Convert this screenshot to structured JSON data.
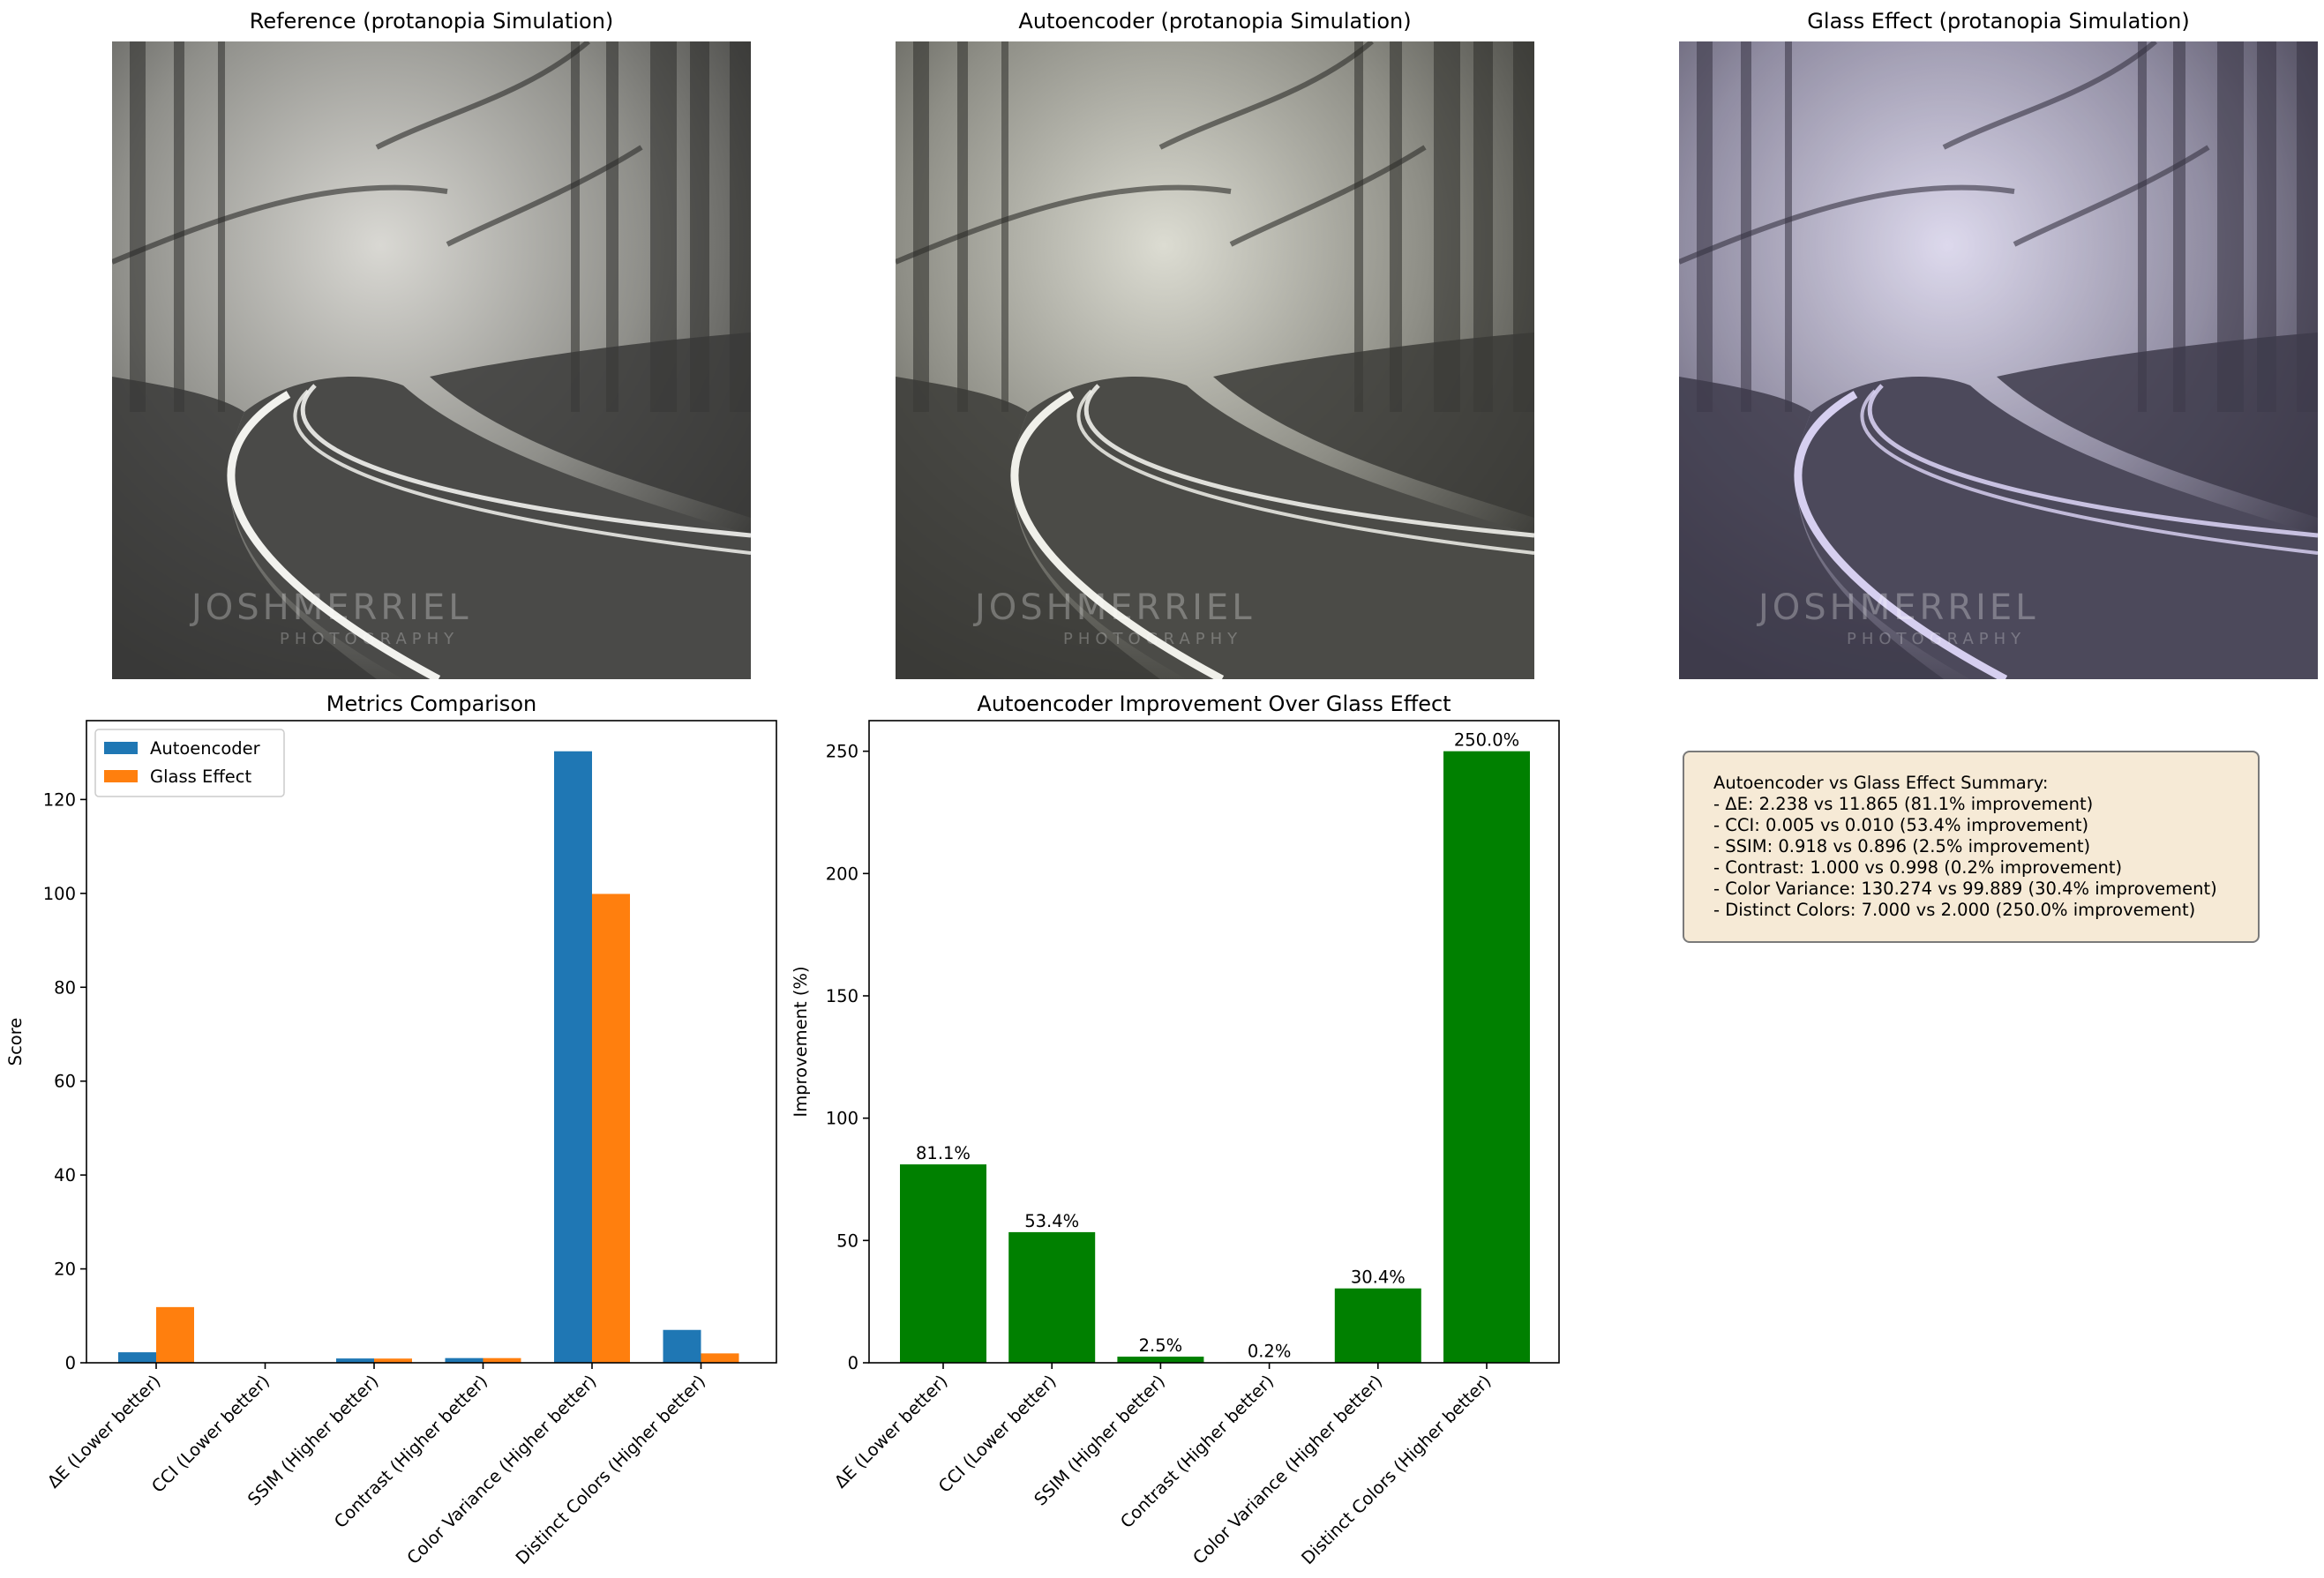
{
  "panels": [
    {
      "title": "Reference (protanopia Simulation)",
      "watermark": "JOSHMERRIEL",
      "watermark_sub": "PHOTOGRAPHY"
    },
    {
      "title": "Autoencoder (protanopia Simulation)",
      "watermark": "JOSHMERRIEL",
      "watermark_sub": "PHOTOGRAPHY"
    },
    {
      "title": "Glass Effect (protanopia Simulation)",
      "watermark": "JOSHMERRIEL",
      "watermark_sub": "PHOTOGRAPHY"
    }
  ],
  "summary": {
    "lines": [
      "Autoencoder vs Glass Effect Summary:",
      "- ΔE: 2.238 vs 11.865 (81.1% improvement)",
      "- CCI: 0.005 vs 0.010 (53.4% improvement)",
      "- SSIM: 0.918 vs 0.896 (2.5% improvement)",
      "- Contrast: 1.000 vs 0.998 (0.2% improvement)",
      "- Color Variance: 130.274 vs 99.889 (30.4% improvement)",
      "- Distinct Colors: 7.000 vs 2.000 (250.0% improvement)"
    ]
  },
  "chart_data": [
    {
      "type": "bar",
      "title": "Metrics Comparison",
      "xlabel": "",
      "ylabel": "Score",
      "categories": [
        "ΔE (Lower better)",
        "CCI (Lower better)",
        "SSIM (Higher better)",
        "Contrast (Higher better)",
        "Color Variance (Higher better)",
        "Distinct Colors (Higher better)"
      ],
      "series": [
        {
          "name": "Autoencoder",
          "color": "#1f77b4",
          "values": [
            2.238,
            0.005,
            0.918,
            1.0,
            130.274,
            7.0
          ]
        },
        {
          "name": "Glass Effect",
          "color": "#ff7f0e",
          "values": [
            11.865,
            0.01,
            0.896,
            0.998,
            99.889,
            2.0
          ]
        }
      ],
      "ylim": [
        0,
        136.8
      ],
      "yticks": [
        0,
        20,
        40,
        60,
        80,
        100,
        120
      ],
      "legend": "top-left",
      "grid": false
    },
    {
      "type": "bar",
      "title": "Autoencoder Improvement Over Glass Effect",
      "xlabel": "",
      "ylabel": "Improvement (%)",
      "categories": [
        "ΔE (Lower better)",
        "CCI (Lower better)",
        "SSIM (Higher better)",
        "Contrast (Higher better)",
        "Color Variance (Higher better)",
        "Distinct Colors (Higher better)"
      ],
      "values": [
        81.1,
        53.4,
        2.5,
        0.2,
        30.4,
        250.0
      ],
      "data_labels": [
        "81.1%",
        "53.4%",
        "2.5%",
        "0.2%",
        "30.4%",
        "250.0%"
      ],
      "color": "#008000",
      "ylim": [
        0,
        262.5
      ],
      "yticks": [
        0,
        50,
        100,
        150,
        200,
        250
      ],
      "grid": false
    }
  ]
}
